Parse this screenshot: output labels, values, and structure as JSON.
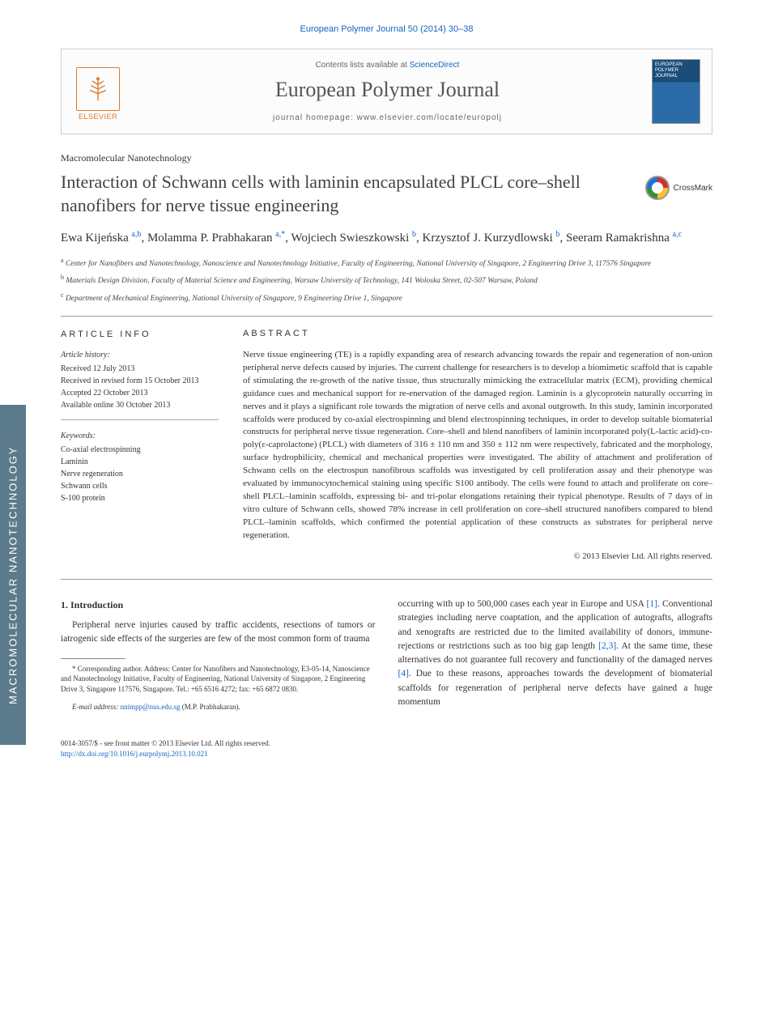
{
  "side_tab": "MACROMOLECULAR NANOTECHNOLOGY",
  "citation": "European Polymer Journal 50 (2014) 30–38",
  "header": {
    "contents_prefix": "Contents lists available at ",
    "contents_link": "ScienceDirect",
    "journal": "European Polymer Journal",
    "homepage_prefix": "journal homepage: ",
    "homepage": "www.elsevier.com/locate/europolj",
    "publisher": "ELSEVIER",
    "cover_text": "EUROPEAN POLYMER JOURNAL"
  },
  "section_tag": "Macromolecular Nanotechnology",
  "title": "Interaction of Schwann cells with laminin encapsulated PLCL core–shell nanofibers for nerve tissue engineering",
  "crossmark_label": "CrossMark",
  "authors_html": "Ewa Kijeńska <span class='sup'>a,b</span>, Molamma P. Prabhakaran <span class='sup'>a,*</span>, Wojciech Swieszkowski <span class='sup'>b</span>, Krzysztof J. Kurzydlowski <span class='sup'>b</span>, Seeram Ramakrishna <span class='sup'>a,c</span>",
  "affiliations": [
    {
      "sup": "a",
      "text": "Center for Nanofibers and Nanotechnology, Nanoscience and Nanotechnology Initiative, Faculty of Engineering, National University of Singapore, 2 Engineering Drive 3, 117576 Singapore"
    },
    {
      "sup": "b",
      "text": "Materials Design Division, Faculty of Material Science and Engineering, Warsaw University of Technology, 141 Woloska Street, 02-507 Warsaw, Poland"
    },
    {
      "sup": "c",
      "text": "Department of Mechanical Engineering, National University of Singapore, 9 Engineering Drive 1, Singapore"
    }
  ],
  "info": {
    "heading": "ARTICLE INFO",
    "history_label": "Article history:",
    "history": [
      "Received 12 July 2013",
      "Received in revised form 15 October 2013",
      "Accepted 22 October 2013",
      "Available online 30 October 2013"
    ],
    "keywords_label": "Keywords:",
    "keywords": [
      "Co-axial electrospinning",
      "Laminin",
      "Nerve regeneration",
      "Schwann cells",
      "S-100 protein"
    ]
  },
  "abstract": {
    "heading": "ABSTRACT",
    "text": "Nerve tissue engineering (TE) is a rapidly expanding area of research advancing towards the repair and regeneration of non-union peripheral nerve defects caused by injuries. The current challenge for researchers is to develop a biomimetic scaffold that is capable of stimulating the re-growth of the native tissue, thus structurally mimicking the extracellular matrix (ECM), providing chemical guidance cues and mechanical support for re-enervation of the damaged region. Laminin is a glycoprotein naturally occurring in nerves and it plays a significant role towards the migration of nerve cells and axonal outgrowth. In this study, laminin incorporated scaffolds were produced by co-axial electrospinning and blend electrospinning techniques, in order to develop suitable biomaterial constructs for peripheral nerve tissue regeneration. Core–shell and blend nanofibers of laminin incorporated poly(L-lactic acid)-co-poly(ε-caprolactone) (PLCL) with diameters of 316 ± 110 nm and 350 ± 112 nm were respectively, fabricated and the morphology, surface hydrophilicity, chemical and mechanical properties were investigated. The ability of attachment and proliferation of Schwann cells on the electrospun nanofibrous scaffolds was investigated by cell proliferation assay and their phenotype was evaluated by immunocytochemical staining using specific S100 antibody. The cells were found to attach and proliferate on core–shell PLCL–laminin scaffolds, expressing bi- and tri-polar elongations retaining their typical phenotype. Results of 7 days of in vitro culture of Schwann cells, showed 78% increase in cell proliferation on core–shell structured nanofibers compared to blend PLCL–laminin scaffolds, which confirmed the potential application of these constructs as substrates for peripheral nerve regeneration.",
    "copyright": "© 2013 Elsevier Ltd. All rights reserved."
  },
  "body": {
    "intro_heading": "1. Introduction",
    "intro_p1": "Peripheral nerve injuries caused by traffic accidents, resections of tumors or iatrogenic side effects of the surgeries are few of the most common form of trauma",
    "intro_p2_a": "occurring with up to 500,000 cases each year in Europe and USA ",
    "intro_p2_ref1": "[1]",
    "intro_p2_b": ". Conventional strategies including nerve coaptation, and the application of autografts, allografts and xenografts are restricted due to the limited availability of donors, immune-rejections or restrictions such as too big gap length ",
    "intro_p2_ref2": "[2,3]",
    "intro_p2_c": ". At the same time, these alternatives do not guarantee full recovery and functionality of the damaged nerves ",
    "intro_p2_ref3": "[4]",
    "intro_p2_d": ". Due to these reasons, approaches towards the development of biomaterial scaffolds for regeneration of peripheral nerve defects have gained a huge momentum"
  },
  "footnote": {
    "corr_label": "* Corresponding author.",
    "corr_text": " Address: Center for Nanofibers and Nanotechnology, E3-05-14, Nanoscience and Nanotechnology Initiative, Faculty of Engineering, National University of Singapore, 2 Engineering Drive 3, Singapore 117576, Singapore. Tel.: +65 6516 4272; fax: +65 6872 0830.",
    "email_label": "E-mail address: ",
    "email": "nnimpp@nus.edu.sg",
    "email_tail": " (M.P. Prabhakaran)."
  },
  "footer": {
    "issn": "0014-3057/$ - see front matter © 2013 Elsevier Ltd. All rights reserved.",
    "doi": "http://dx.doi.org/10.1016/j.eurpolymj.2013.10.021"
  },
  "colors": {
    "link": "#1565c0",
    "side": "#5b7a8c",
    "elsevier": "#e07b2e"
  }
}
